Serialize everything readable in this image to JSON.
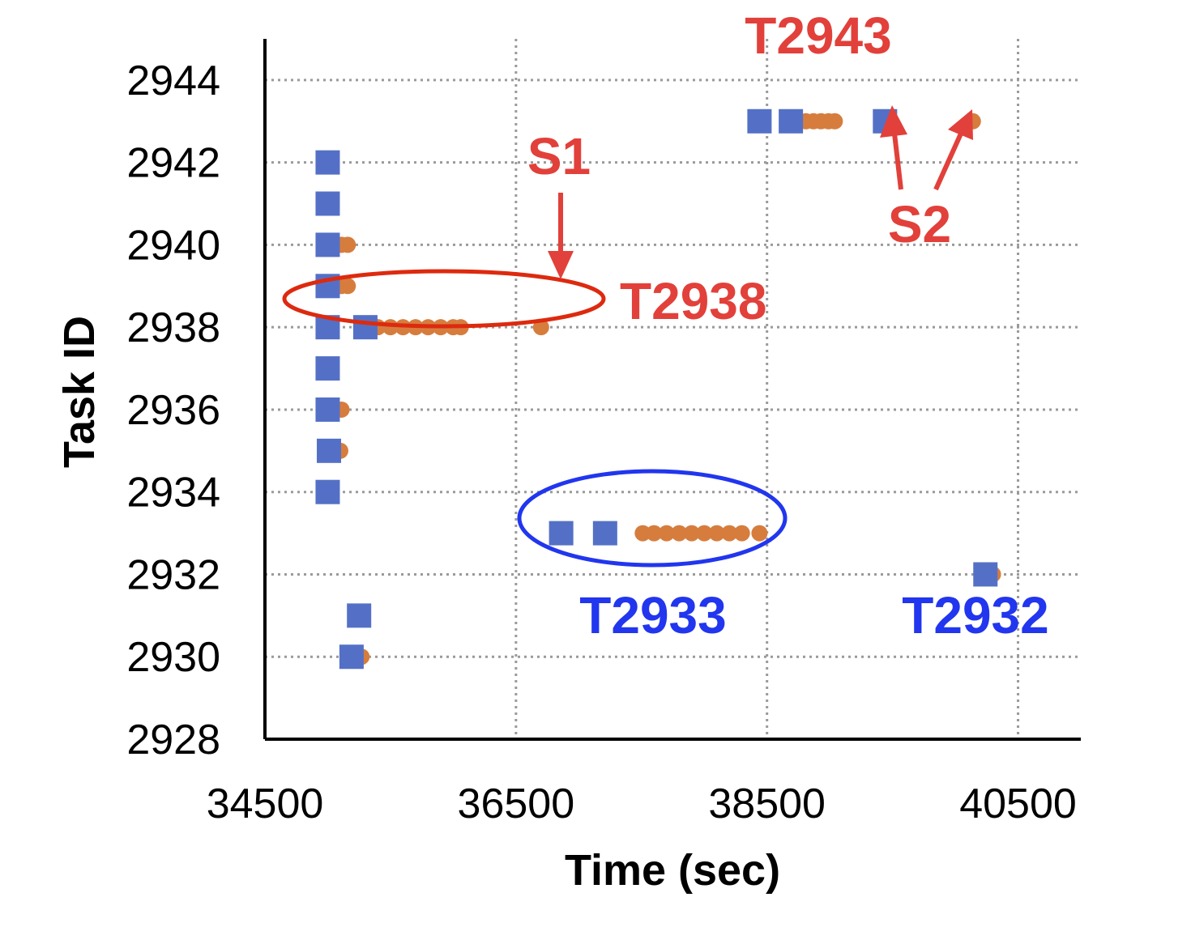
{
  "chart_data": {
    "type": "scatter",
    "title": "",
    "xlabel": "Time (sec)",
    "ylabel": "Task ID",
    "xlim": [
      34500,
      41000
    ],
    "ylim": [
      2928,
      2945
    ],
    "xticks": [
      34500,
      36500,
      38500,
      40500
    ],
    "yticks": [
      2928,
      2930,
      2932,
      2934,
      2936,
      2938,
      2940,
      2942,
      2944
    ],
    "x_tick_labels": [
      "34500",
      "36500",
      "38500",
      "40500"
    ],
    "y_tick_labels": [
      "2928",
      "2930",
      "2932",
      "2934",
      "2936",
      "2938",
      "2940",
      "2942",
      "2944"
    ],
    "grid": true,
    "legend": "none",
    "colors": {
      "start_marker": "#5470C6",
      "end_marker": "#D67D3E",
      "annotation_red": "#E2403A",
      "ellipse_red": "#DD2A0F",
      "annotation_blue": "#2136EE"
    },
    "series": [
      {
        "marker": "square",
        "color": "#5470C6",
        "points": [
          [
            35000,
            2942
          ],
          [
            35000,
            2941
          ],
          [
            35000,
            2940
          ],
          [
            35000,
            2939
          ],
          [
            35000,
            2938
          ],
          [
            35300,
            2938
          ],
          [
            35000,
            2937
          ],
          [
            35000,
            2936
          ],
          [
            35010,
            2935
          ],
          [
            35000,
            2934
          ],
          [
            35250,
            2931
          ],
          [
            35190,
            2930
          ],
          [
            36860,
            2933
          ],
          [
            37210,
            2933
          ],
          [
            38440,
            2943
          ],
          [
            38690,
            2943
          ],
          [
            39440,
            2943
          ],
          [
            40240,
            2932
          ]
        ]
      },
      {
        "marker": "circle",
        "color": "#D67D3E",
        "points": [
          [
            35010,
            2940
          ],
          [
            35060,
            2940
          ],
          [
            35110,
            2940
          ],
          [
            35160,
            2940
          ],
          [
            35010,
            2939
          ],
          [
            35060,
            2939
          ],
          [
            35110,
            2939
          ],
          [
            35160,
            2939
          ],
          [
            35300,
            2938
          ],
          [
            35400,
            2938
          ],
          [
            35500,
            2938
          ],
          [
            35600,
            2938
          ],
          [
            35700,
            2938
          ],
          [
            35800,
            2938
          ],
          [
            35900,
            2938
          ],
          [
            36000,
            2938
          ],
          [
            36060,
            2938
          ],
          [
            36700,
            2938
          ],
          [
            35010,
            2936
          ],
          [
            35060,
            2936
          ],
          [
            35110,
            2936
          ],
          [
            35010,
            2935
          ],
          [
            35060,
            2935
          ],
          [
            35100,
            2935
          ],
          [
            35200,
            2930
          ],
          [
            35270,
            2930
          ],
          [
            37510,
            2933
          ],
          [
            37600,
            2933
          ],
          [
            37700,
            2933
          ],
          [
            37800,
            2933
          ],
          [
            37900,
            2933
          ],
          [
            38000,
            2933
          ],
          [
            38100,
            2933
          ],
          [
            38200,
            2933
          ],
          [
            38300,
            2933
          ],
          [
            38440,
            2933
          ],
          [
            38690,
            2943
          ],
          [
            38750,
            2943
          ],
          [
            38810,
            2943
          ],
          [
            38870,
            2943
          ],
          [
            38930,
            2943
          ],
          [
            38990,
            2943
          ],
          [
            39040,
            2943
          ],
          [
            40140,
            2943
          ],
          [
            40240,
            2932
          ],
          [
            40300,
            2932
          ]
        ]
      }
    ],
    "annotations": [
      {
        "id": "s1",
        "text": "S1",
        "color": "#E2403A"
      },
      {
        "id": "s2",
        "text": "S2",
        "color": "#E2403A"
      },
      {
        "id": "t2938",
        "text": "T2938",
        "color": "#E2403A"
      },
      {
        "id": "t2943",
        "text": "T2943",
        "color": "#E2403A"
      },
      {
        "id": "t2933",
        "text": "T2933",
        "color": "#2136EE"
      },
      {
        "id": "t2932",
        "text": "T2932",
        "color": "#2136EE"
      }
    ]
  }
}
